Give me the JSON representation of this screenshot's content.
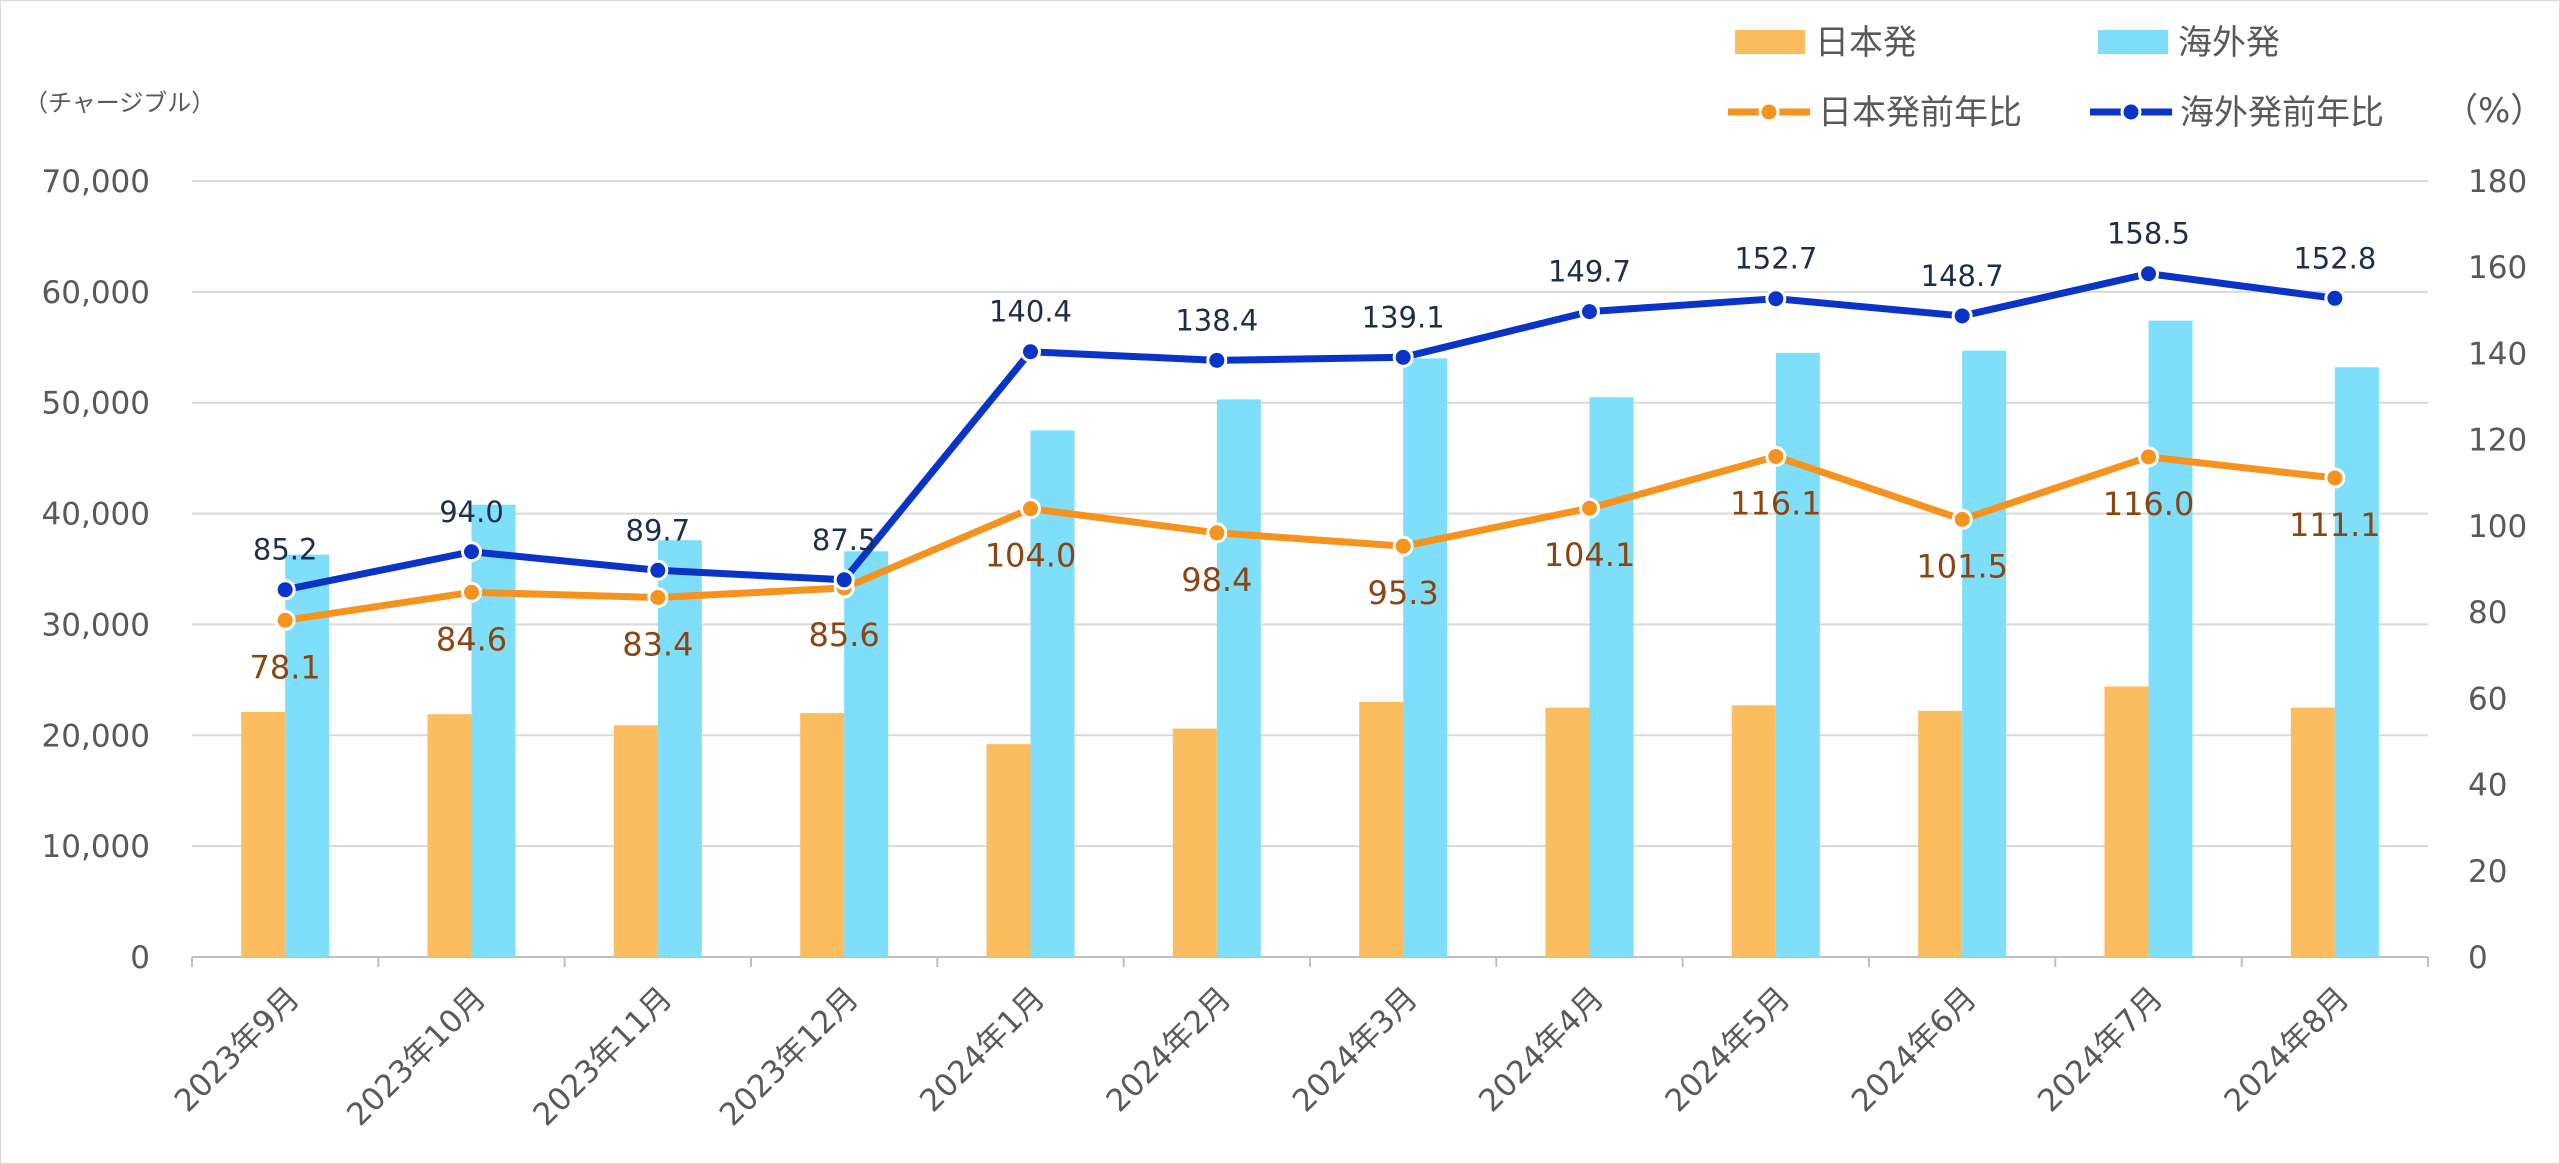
{
  "chart_data": {
    "type": "bar",
    "categories": [
      "2023年9月",
      "2023年10月",
      "2023年11月",
      "2023年12月",
      "2024年1月",
      "2024年2月",
      "2024年3月",
      "2024年4月",
      "2024年5月",
      "2024年6月",
      "2024年7月",
      "2024年8月"
    ],
    "y_left": {
      "label": "（チャージブル）",
      "ylim": [
        0,
        70000
      ],
      "ticks": [
        "0",
        "10,000",
        "20,000",
        "30,000",
        "40,000",
        "50,000",
        "60,000",
        "70,000"
      ]
    },
    "y_right": {
      "label": "（%）",
      "ylim": [
        0,
        180
      ],
      "ticks": [
        "0",
        "20",
        "40",
        "60",
        "80",
        "100",
        "120",
        "140",
        "160",
        "180"
      ]
    },
    "series": [
      {
        "name": "日本発",
        "kind": "bar",
        "axis": "left",
        "color": "#FBBD5F",
        "values": [
          22100,
          21900,
          20900,
          22000,
          19200,
          20600,
          23000,
          22500,
          22700,
          22200,
          24400,
          22500
        ]
      },
      {
        "name": "海外発",
        "kind": "bar",
        "axis": "left",
        "color": "#7FDFFB",
        "values": [
          36300,
          40800,
          37600,
          36600,
          47500,
          50300,
          54000,
          50500,
          54500,
          54700,
          57400,
          53200
        ]
      },
      {
        "name": "日本発前年比",
        "kind": "line",
        "axis": "right",
        "color": "#F5931E",
        "label_color": "#8B4513",
        "values": [
          78.1,
          84.6,
          83.4,
          85.6,
          104.0,
          98.4,
          95.3,
          104.1,
          116.1,
          101.5,
          116.0,
          111.1
        ],
        "labels": [
          "78.1",
          "84.6",
          "83.4",
          "85.6",
          "104.0",
          "98.4",
          "95.3",
          "104.1",
          "116.1",
          "101.5",
          "116.0",
          "111.1"
        ]
      },
      {
        "name": "海外発前年比",
        "kind": "line",
        "axis": "right",
        "color": "#0A33C8",
        "label_color": "#1F2D4D",
        "values": [
          85.2,
          94.0,
          89.7,
          87.5,
          140.4,
          138.4,
          139.1,
          149.7,
          152.7,
          148.7,
          158.5,
          152.8
        ],
        "labels": [
          "85.2",
          "94.0",
          "89.7",
          "87.5",
          "140.4",
          "138.4",
          "139.1",
          "149.7",
          "152.7",
          "148.7",
          "158.5",
          "152.8"
        ]
      }
    ],
    "grid": true,
    "legend_position": "top-right"
  }
}
